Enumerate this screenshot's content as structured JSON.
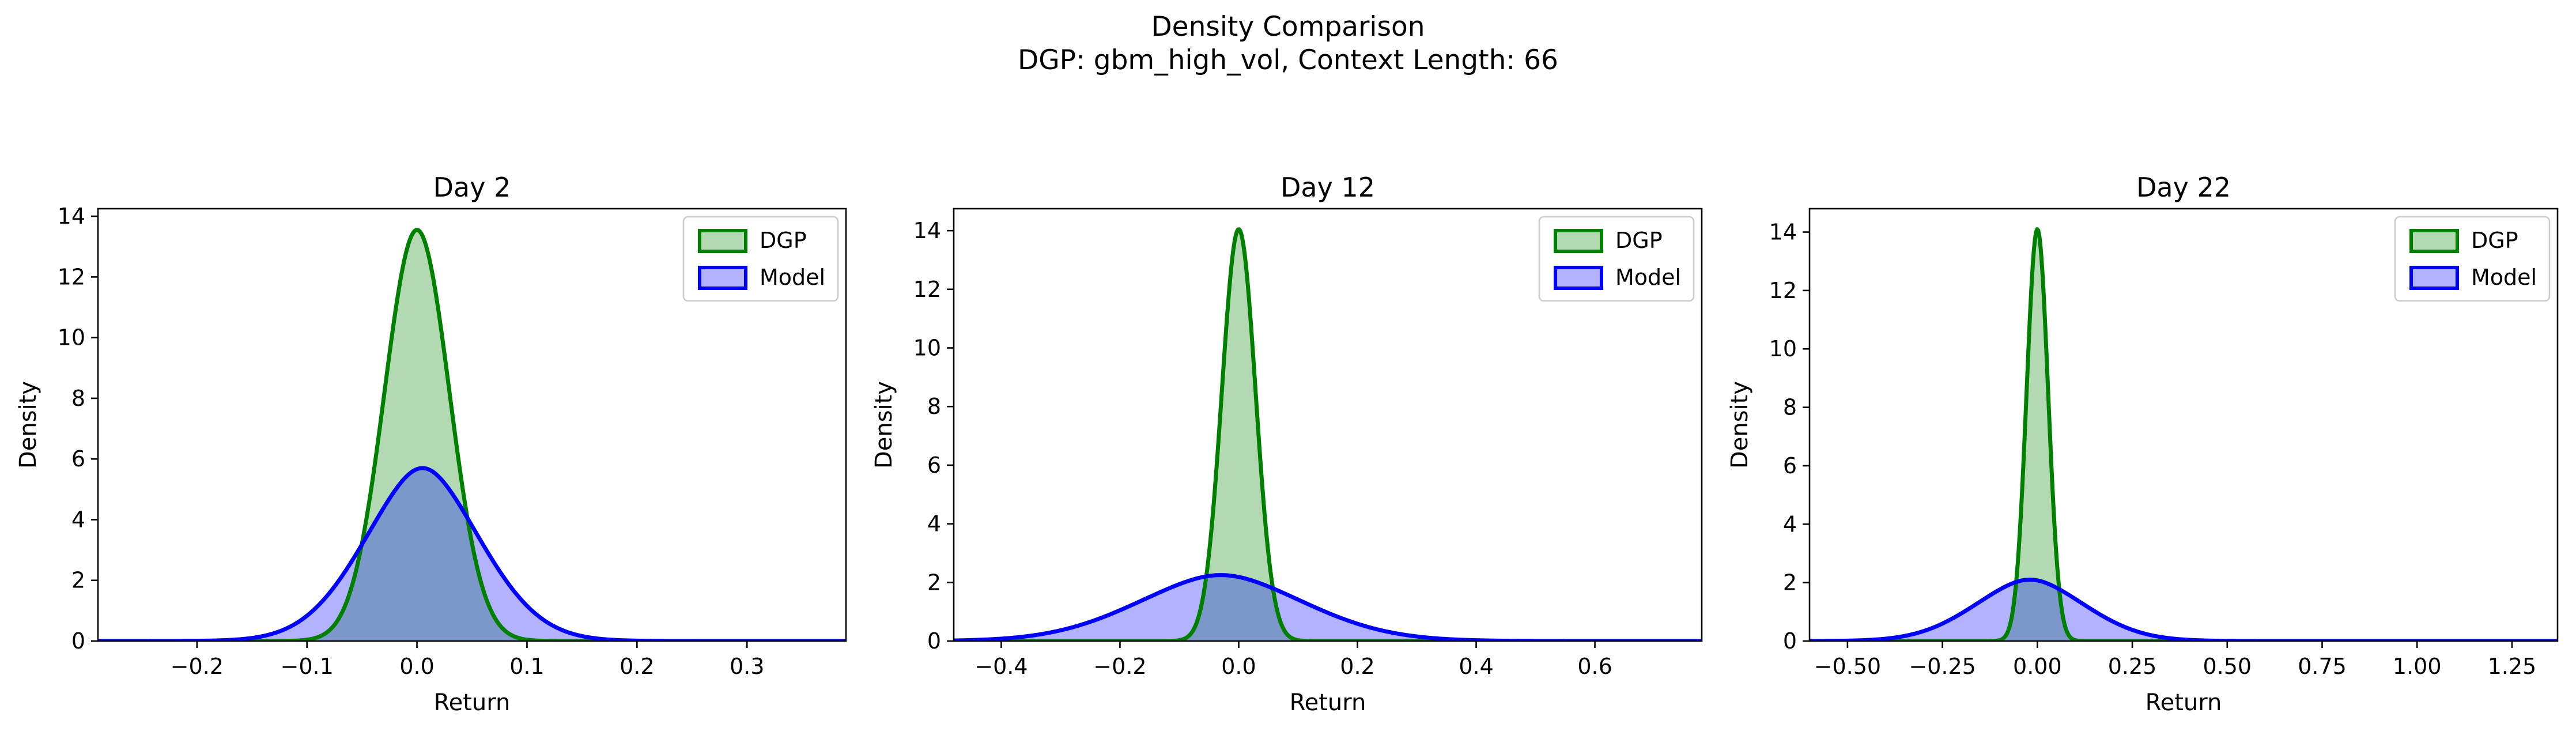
{
  "figure": {
    "title": "Density Comparison",
    "subtitle": "DGP: gbm_high_vol, Context Length: 66"
  },
  "colors": {
    "dgp_line": "#008000",
    "dgp_fill": "#008000",
    "model_line": "#0000ff",
    "model_fill": "#0000ff",
    "axis": "#000000"
  },
  "chart_data": [
    {
      "type": "area",
      "title": "Day 2",
      "xlabel": "Return",
      "ylabel": "Density",
      "xlim": [
        -0.29,
        0.39
      ],
      "ylim": [
        0,
        14.25
      ],
      "xticks": [
        -0.2,
        -0.1,
        0.0,
        0.1,
        0.2,
        0.3
      ],
      "xtick_labels": [
        "−0.2",
        "−0.1",
        "0.0",
        "0.1",
        "0.2",
        "0.3"
      ],
      "yticks": [
        0,
        2,
        4,
        6,
        8,
        10,
        12,
        14
      ],
      "ytick_labels": [
        "0",
        "2",
        "4",
        "6",
        "8",
        "10",
        "12",
        "14"
      ],
      "legend": {
        "position": "top-right",
        "entries": [
          "DGP",
          "Model"
        ]
      },
      "series": [
        {
          "name": "DGP",
          "shape": "gaussian",
          "peak_x": 0.0,
          "peak_density": 13.55
        },
        {
          "name": "Model",
          "shape": "heavy-tailed",
          "peak_x": 0.005,
          "peak_density": 5.7
        }
      ]
    },
    {
      "type": "area",
      "title": "Day 12",
      "xlabel": "Return",
      "ylabel": "Density",
      "xlim": [
        -0.48,
        0.78
      ],
      "ylim": [
        0,
        14.75
      ],
      "xticks": [
        -0.4,
        -0.2,
        0.0,
        0.2,
        0.4,
        0.6
      ],
      "xtick_labels": [
        "−0.4",
        "−0.2",
        "0.0",
        "0.2",
        "0.4",
        "0.6"
      ],
      "yticks": [
        0,
        2,
        4,
        6,
        8,
        10,
        12,
        14
      ],
      "ytick_labels": [
        "0",
        "2",
        "4",
        "6",
        "8",
        "10",
        "12",
        "14"
      ],
      "legend": {
        "position": "top-right",
        "entries": [
          "DGP",
          "Model"
        ]
      },
      "series": [
        {
          "name": "DGP",
          "shape": "gaussian",
          "peak_x": 0.0,
          "peak_density": 14.05
        },
        {
          "name": "Model",
          "shape": "heavy-tailed",
          "peak_x": -0.03,
          "peak_density": 2.25
        }
      ]
    },
    {
      "type": "area",
      "title": "Day 22",
      "xlabel": "Return",
      "ylabel": "Density",
      "xlim": [
        -0.6,
        1.37
      ],
      "ylim": [
        0,
        14.8
      ],
      "xticks": [
        -0.5,
        -0.25,
        0.0,
        0.25,
        0.5,
        0.75,
        1.0,
        1.25
      ],
      "xtick_labels": [
        "−0.50",
        "−0.25",
        "0.00",
        "0.25",
        "0.50",
        "0.75",
        "1.00",
        "1.25"
      ],
      "yticks": [
        0,
        2,
        4,
        6,
        8,
        10,
        12,
        14
      ],
      "ytick_labels": [
        "0",
        "2",
        "4",
        "6",
        "8",
        "10",
        "12",
        "14"
      ],
      "legend": {
        "position": "top-right",
        "entries": [
          "DGP",
          "Model"
        ]
      },
      "series": [
        {
          "name": "DGP",
          "shape": "gaussian",
          "peak_x": 0.0,
          "peak_density": 14.1
        },
        {
          "name": "Model",
          "shape": "heavy-tailed",
          "peak_x": -0.02,
          "peak_density": 2.1
        }
      ]
    }
  ]
}
